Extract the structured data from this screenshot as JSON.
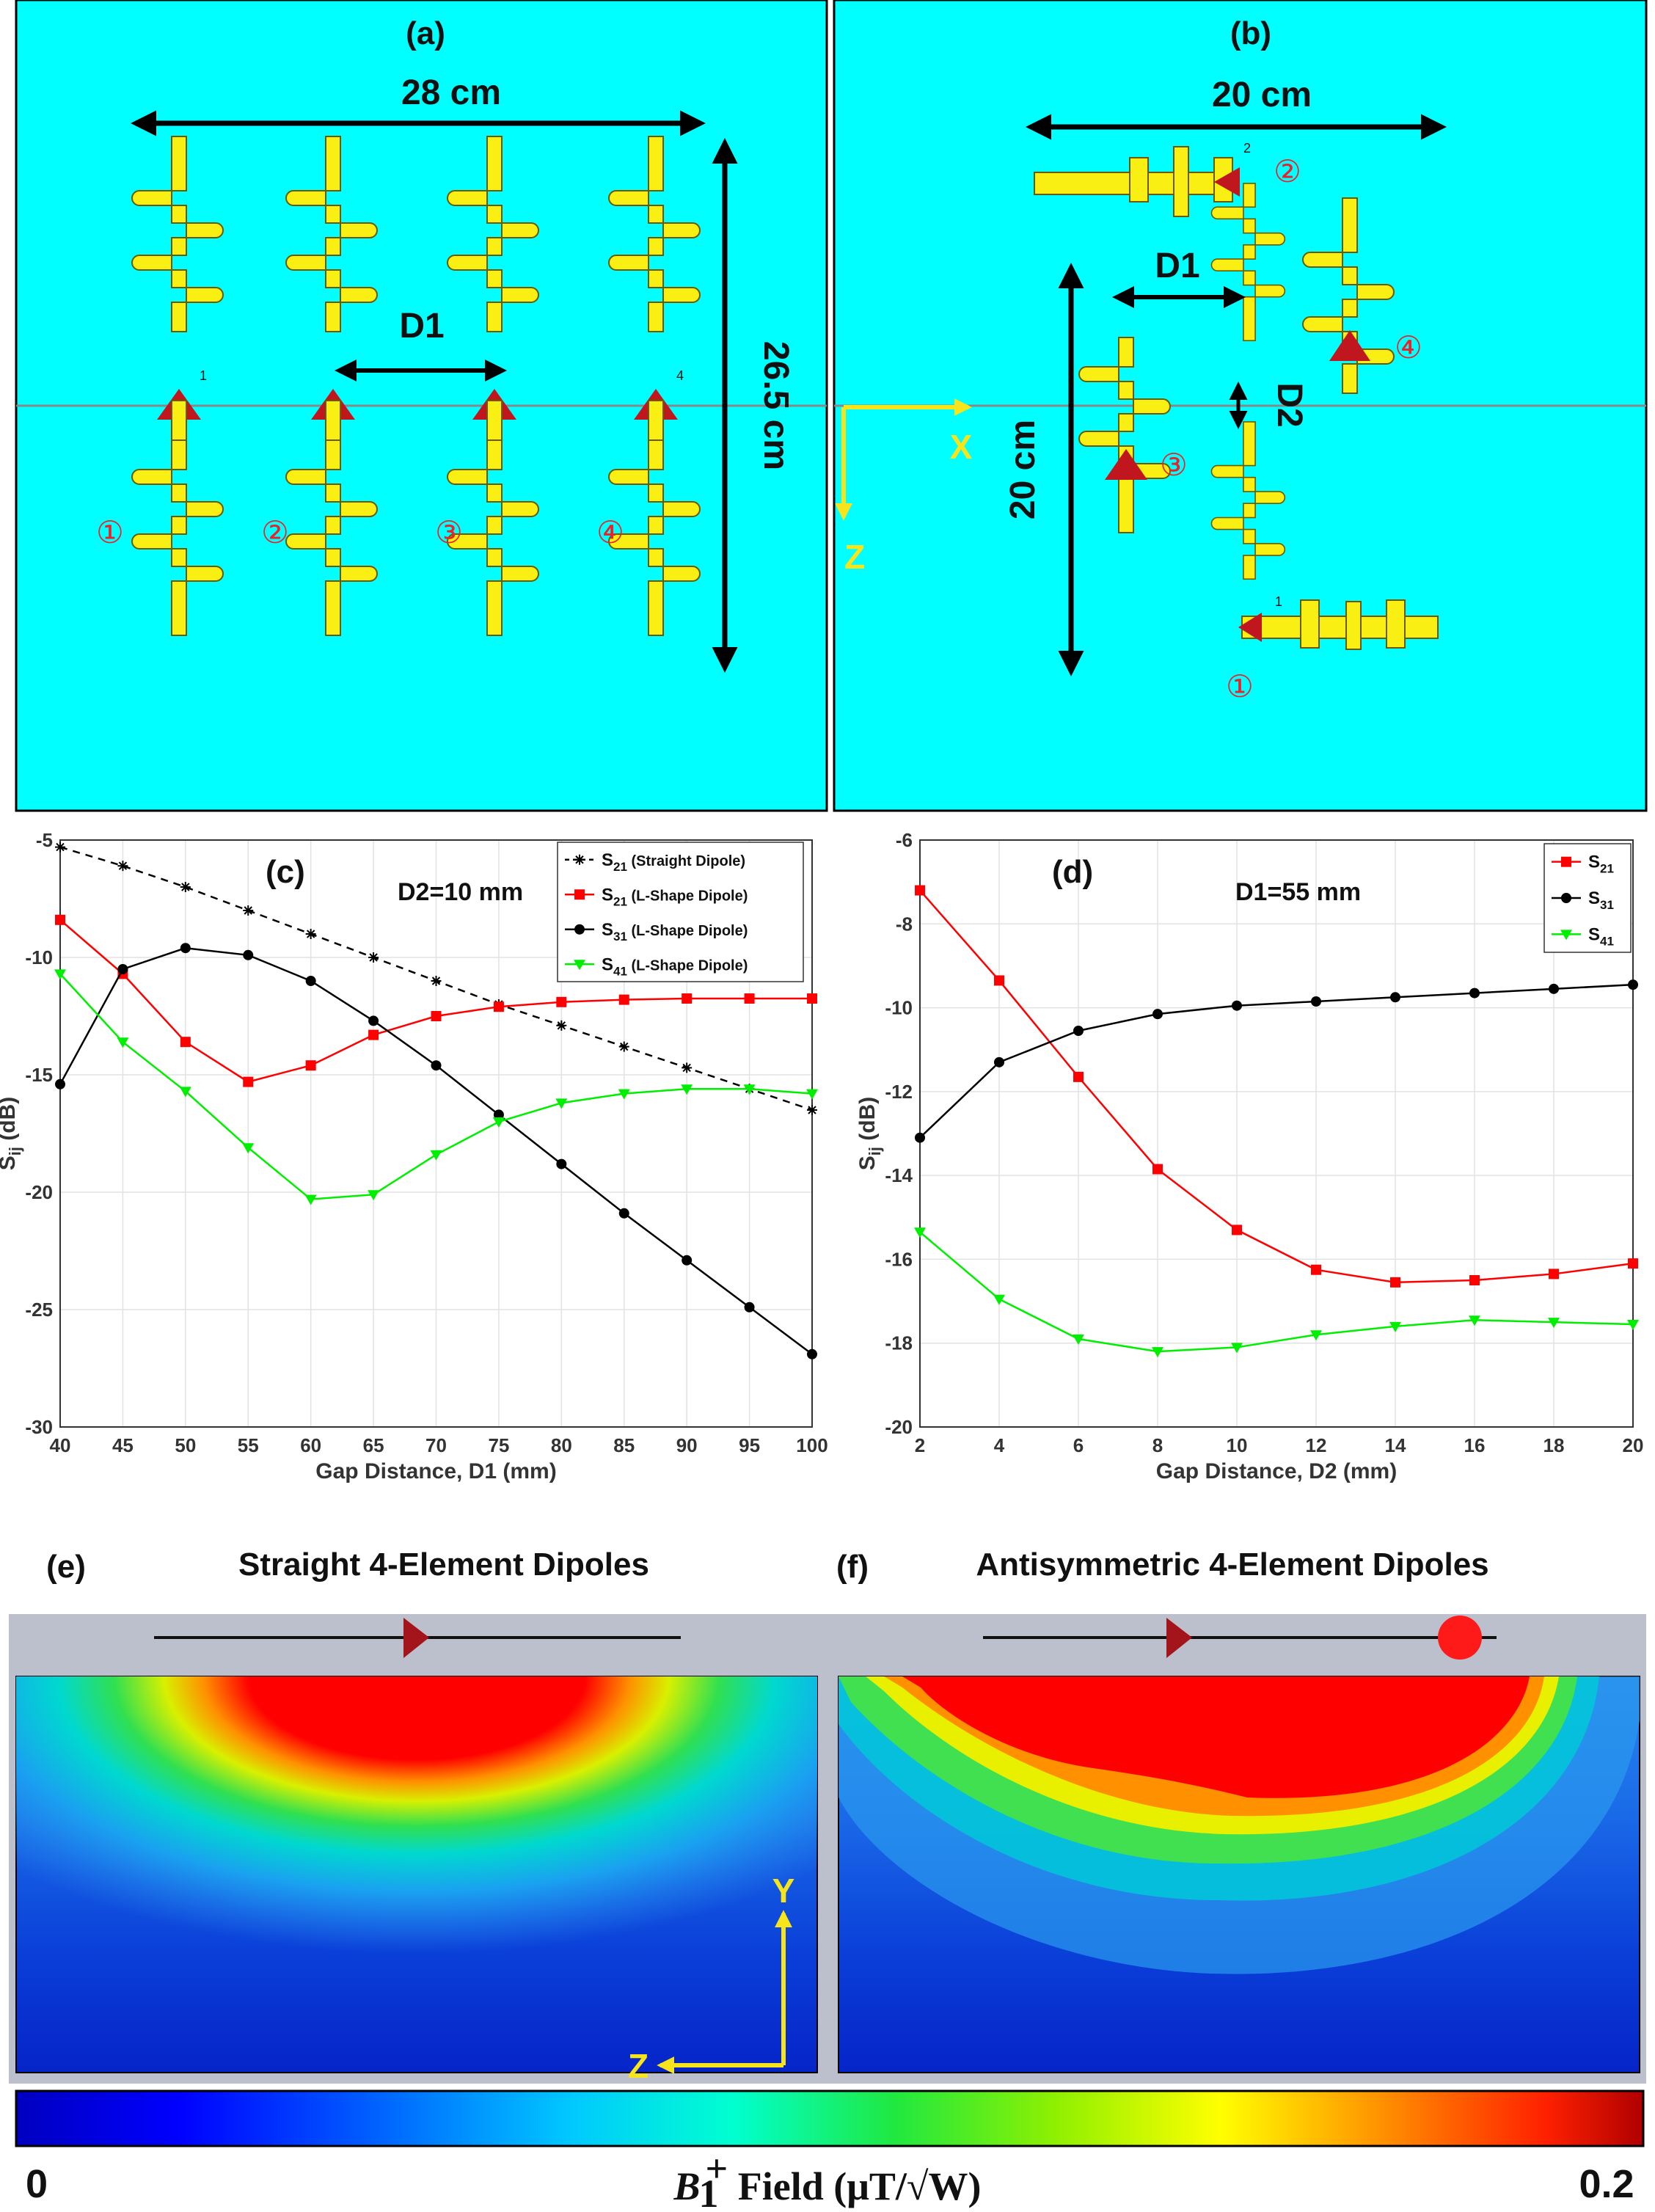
{
  "panels": {
    "a": {
      "label": "(a)",
      "width_label": "28 cm",
      "height_label": "26.5 cm",
      "gap_label": "D1",
      "ports": [
        "①",
        "②",
        "③",
        "④"
      ],
      "feed_nums": [
        "1",
        "4"
      ]
    },
    "b": {
      "label": "(b)",
      "width_label": "20 cm",
      "height_label": "20 cm",
      "gap1_label": "D1",
      "gap2_label": "D2",
      "ports": [
        "①",
        "②",
        "③",
        "④"
      ],
      "feed_nums": [
        "1",
        "2"
      ],
      "axis_x": "X",
      "axis_z": "Z"
    },
    "e": {
      "label": "(e)",
      "title": "Straight 4-Element Dipoles",
      "axis_y": "Y",
      "axis_z": "Z"
    },
    "f": {
      "label": "(f)",
      "title": "Antisymmetric 4-Element Dipoles"
    }
  },
  "colorbar": {
    "min_label": "0",
    "max_label": "0.2",
    "field_label": "B₁⁺ Field (μT/√W)",
    "field_main": "B",
    "field_sub": "1",
    "field_sup": "+",
    "field_rest": " Field (μT/√W)"
  },
  "colors": {
    "cyan": "#00ffff",
    "dipole": "#f9ef12",
    "feed": "#c0171e",
    "red": "#ff0000",
    "black": "#000000",
    "green": "#00ee00",
    "axis_yellow": "#f7e41a"
  },
  "chart_data": [
    {
      "id": "c",
      "type": "line",
      "panel_label": "(c)",
      "annotation": "D2=10 mm",
      "xlabel": "Gap Distance, D1 (mm)",
      "ylabel": "S_ij (dB)",
      "ylabel_main": "S",
      "ylabel_sub": "ij",
      "ylabel_rest": " (dB)",
      "xlim": [
        40,
        100
      ],
      "ylim": [
        -30,
        -5
      ],
      "xticks": [
        40,
        45,
        50,
        55,
        60,
        65,
        70,
        75,
        80,
        85,
        90,
        95,
        100
      ],
      "yticks": [
        -5,
        -10,
        -15,
        -20,
        -25,
        -30
      ],
      "x": [
        40,
        45,
        50,
        55,
        60,
        65,
        70,
        75,
        80,
        85,
        90,
        95,
        100
      ],
      "grid": true,
      "legend_position": "top-right",
      "series": [
        {
          "name": "S21 (Straight Dipole)",
          "legend_main": "S",
          "legend_sub": "21",
          "legend_rest": " (Straight Dipole)",
          "color": "#000000",
          "marker": "star",
          "dashed": true,
          "values": [
            -5.3,
            -6.1,
            -7.0,
            -8.0,
            -9.0,
            -10.0,
            -11.0,
            -12.0,
            -12.9,
            -13.8,
            -14.7,
            -15.6,
            -16.5
          ]
        },
        {
          "name": "S21 (L-Shape Dipole)",
          "legend_main": "S",
          "legend_sub": "21",
          "legend_rest": " (L-Shape Dipole)",
          "color": "#ff0000",
          "marker": "square",
          "dashed": false,
          "values": [
            -8.4,
            -10.7,
            -13.6,
            -15.3,
            -14.6,
            -13.3,
            -12.5,
            -12.1,
            -11.9,
            -11.8,
            -11.75,
            -11.75,
            -11.75
          ]
        },
        {
          "name": "S31 (L-Shape Dipole)",
          "legend_main": "S",
          "legend_sub": "31",
          "legend_rest": " (L-Shape Dipole)",
          "color": "#000000",
          "marker": "circle",
          "dashed": false,
          "values": [
            -15.4,
            -10.5,
            -9.6,
            -9.9,
            -11.0,
            -12.7,
            -14.6,
            -16.7,
            -18.8,
            -20.9,
            -22.9,
            -24.9,
            -26.9
          ]
        },
        {
          "name": "S41 (L-Shape Dipole)",
          "legend_main": "S",
          "legend_sub": "41",
          "legend_rest": " (L-Shape Dipole)",
          "color": "#00ee00",
          "marker": "triangle-down",
          "dashed": false,
          "values": [
            -10.7,
            -13.6,
            -15.7,
            -18.1,
            -20.3,
            -20.1,
            -18.4,
            -17.0,
            -16.2,
            -15.8,
            -15.6,
            -15.6,
            -15.8
          ]
        }
      ]
    },
    {
      "id": "d",
      "type": "line",
      "panel_label": "(d)",
      "annotation": "D1=55 mm",
      "xlabel": "Gap Distance, D2 (mm)",
      "ylabel": "S_ij (dB)",
      "ylabel_main": "S",
      "ylabel_sub": "ij",
      "ylabel_rest": " (dB)",
      "xlim": [
        2,
        20
      ],
      "ylim": [
        -20,
        -6
      ],
      "xticks": [
        2,
        4,
        6,
        8,
        10,
        12,
        14,
        16,
        18,
        20
      ],
      "yticks": [
        -6,
        -8,
        -10,
        -12,
        -14,
        -16,
        -18,
        -20
      ],
      "x": [
        2,
        4,
        6,
        8,
        10,
        12,
        14,
        16,
        18,
        20
      ],
      "grid": true,
      "legend_position": "top-right",
      "series": [
        {
          "name": "S21",
          "legend_main": "S",
          "legend_sub": "21",
          "legend_rest": "",
          "color": "#ff0000",
          "marker": "square",
          "dashed": false,
          "values": [
            -7.2,
            -9.35,
            -11.65,
            -13.85,
            -15.3,
            -16.25,
            -16.55,
            -16.5,
            -16.35,
            -16.1
          ]
        },
        {
          "name": "S31",
          "legend_main": "S",
          "legend_sub": "31",
          "legend_rest": "",
          "color": "#000000",
          "marker": "circle",
          "dashed": false,
          "values": [
            -13.1,
            -11.3,
            -10.55,
            -10.15,
            -9.95,
            -9.85,
            -9.75,
            -9.65,
            -9.55,
            -9.45
          ]
        },
        {
          "name": "S41",
          "legend_main": "S",
          "legend_sub": "41",
          "legend_rest": "",
          "color": "#00ee00",
          "marker": "triangle-down",
          "dashed": false,
          "values": [
            -15.35,
            -16.95,
            -17.9,
            -18.2,
            -18.1,
            -17.8,
            -17.6,
            -17.45,
            -17.5,
            -17.55
          ]
        }
      ]
    }
  ]
}
